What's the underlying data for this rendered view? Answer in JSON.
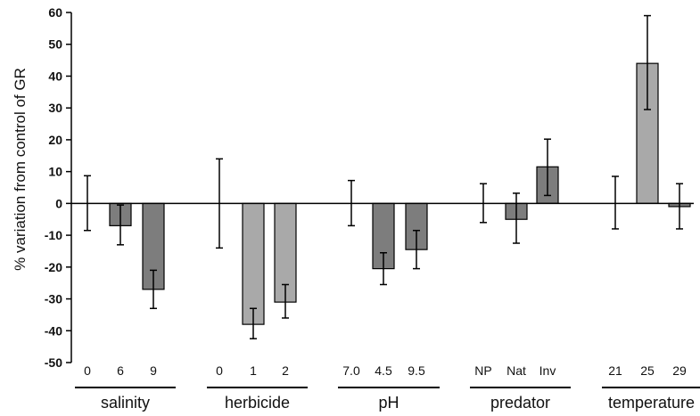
{
  "chart_data": {
    "type": "bar",
    "title": "",
    "xlabel": "",
    "ylabel": "% variation from control of GR",
    "ylim": [
      -50,
      60
    ],
    "yticks": [
      60,
      50,
      40,
      30,
      20,
      10,
      0,
      -10,
      -20,
      -30,
      -40,
      -50
    ],
    "ytick_labels": [
      "60",
      "50",
      "40",
      "30",
      "20",
      "10",
      "0",
      "-10",
      "-20",
      "-30",
      "-40",
      "-50"
    ],
    "grid": false,
    "legend": "none",
    "colors": {
      "light": "#a9a9a9",
      "dark": "#7d7d7d",
      "outline": "#000000"
    },
    "groups": [
      {
        "name": "salinity",
        "bars": [
          {
            "label": "0",
            "value": 0,
            "err_low": -8.5,
            "err_high": 8.7,
            "shade": "light"
          },
          {
            "label": "6",
            "value": -7,
            "err_low": -13,
            "err_high": -0.5,
            "shade": "dark"
          },
          {
            "label": "9",
            "value": -27,
            "err_low": -33,
            "err_high": -21,
            "shade": "dark"
          }
        ]
      },
      {
        "name": "herbicide",
        "bars": [
          {
            "label": "0",
            "value": 0,
            "err_low": -14,
            "err_high": 14,
            "shade": "light"
          },
          {
            "label": "1",
            "value": -38,
            "err_low": -42.5,
            "err_high": -33,
            "shade": "light"
          },
          {
            "label": "2",
            "value": -31,
            "err_low": -36,
            "err_high": -25.5,
            "shade": "light"
          }
        ]
      },
      {
        "name": "pH",
        "bars": [
          {
            "label": "7.0",
            "value": 0,
            "err_low": -7,
            "err_high": 7.2,
            "shade": "light"
          },
          {
            "label": "4.5",
            "value": -20.5,
            "err_low": -25.5,
            "err_high": -15.5,
            "shade": "dark"
          },
          {
            "label": "9.5",
            "value": -14.5,
            "err_low": -20.5,
            "err_high": -8.5,
            "shade": "dark"
          }
        ]
      },
      {
        "name": "predator",
        "bars": [
          {
            "label": "NP",
            "value": 0,
            "err_low": -6,
            "err_high": 6.2,
            "shade": "light"
          },
          {
            "label": "Nat",
            "value": -5,
            "err_low": -12.5,
            "err_high": 3.2,
            "shade": "dark"
          },
          {
            "label": "Inv",
            "value": 11.5,
            "err_low": 2.5,
            "err_high": 20.2,
            "shade": "dark"
          }
        ]
      },
      {
        "name": "temperature",
        "bars": [
          {
            "label": "21",
            "value": 0,
            "err_low": -8,
            "err_high": 8.5,
            "shade": "light"
          },
          {
            "label": "25",
            "value": 44,
            "err_low": 29.5,
            "err_high": 59,
            "shade": "light"
          },
          {
            "label": "29",
            "value": -1,
            "err_low": -8,
            "err_high": 6.2,
            "shade": "dark"
          }
        ]
      }
    ]
  }
}
